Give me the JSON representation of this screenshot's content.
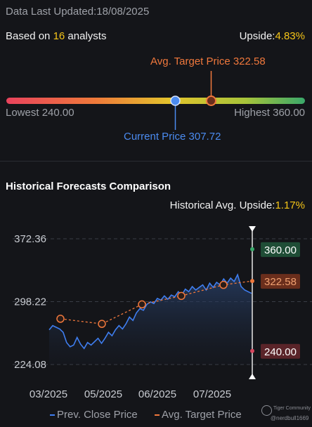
{
  "header": {
    "updated_label": "Data Last Updated:",
    "updated_date": "18/08/2025",
    "based_on_prefix": "Based on ",
    "analyst_count": "16",
    "based_on_suffix": " analysts",
    "upside_label": "Upside:",
    "upside_value": "4.83%"
  },
  "price_range": {
    "avg_target_label": "Avg. Target Price 322.58",
    "lowest_label": "Lowest 240.00",
    "highest_label": "Highest 360.00",
    "current_label": "Current Price 307.72",
    "lowest": 240.0,
    "highest": 360.0,
    "current": 307.72,
    "avg_target": 322.58
  },
  "historical": {
    "title": "Historical Forecasts Comparison",
    "upside_label": "Historical Avg. Upside:",
    "upside_value": "1.17%"
  },
  "legend": {
    "close_label": "Prev. Close Price",
    "avg_label": "Avg. Target Price"
  },
  "watermark": {
    "brand": "Tiger Community",
    "user": "@nerdbull1669"
  },
  "colors": {
    "close_line": "#3f7ef0",
    "avg_target": "#f0783c",
    "high_tag": "#1f4d36",
    "low_tag": "#5a2429",
    "avg_tag": "#6a2e1c",
    "accent_yellow": "#f5c518"
  },
  "chart_data": {
    "type": "line",
    "x_tick_labels": [
      "03/2025",
      "05/2025",
      "06/2025",
      "07/2025"
    ],
    "y_tick_labels": [
      "372.36",
      "298.22",
      "224.08"
    ],
    "ylim": [
      224.08,
      372.36
    ],
    "grid": true,
    "series": [
      {
        "name": "Prev. Close Price",
        "values": [
          265,
          270,
          268,
          266,
          262,
          250,
          245,
          247,
          256,
          248,
          243,
          250,
          247,
          251,
          255,
          249,
          255,
          262,
          258,
          265,
          270,
          266,
          272,
          280,
          276,
          285,
          290,
          288,
          295,
          298,
          296,
          302,
          300,
          305,
          301,
          306,
          304,
          310,
          306,
          313,
          310,
          316,
          312,
          315,
          318,
          312,
          320,
          315,
          321,
          318,
          325,
          320,
          326,
          322,
          330,
          316,
          312,
          310,
          308
        ]
      },
      {
        "name": "Avg. Target Price",
        "points": [
          {
            "x": "03/2025",
            "y": 278
          },
          {
            "x": "04/2025",
            "y": 272
          },
          {
            "x": "05/2025",
            "y": 295
          },
          {
            "x": "06/2025",
            "y": 305
          },
          {
            "x": "07/2025",
            "y": 318
          },
          {
            "x": "08/2025",
            "y": 322.58
          }
        ]
      }
    ],
    "forecast_markers": [
      {
        "label": "360.00",
        "value": 360.0,
        "kind": "high"
      },
      {
        "label": "322.58",
        "value": 322.58,
        "kind": "avg"
      },
      {
        "label": "240.00",
        "value": 240.0,
        "kind": "low"
      }
    ]
  }
}
